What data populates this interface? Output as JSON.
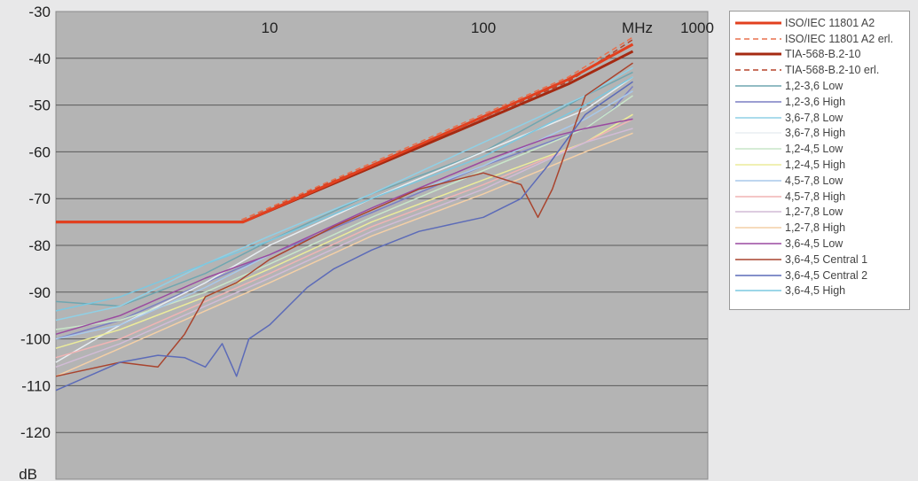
{
  "chart_data": {
    "type": "line",
    "x_scale": "log",
    "xlim": [
      1,
      1000
    ],
    "ylim": [
      -130,
      -30
    ],
    "x_ticks": [
      {
        "value": 10,
        "label": "10"
      },
      {
        "value": 100,
        "label": "100"
      },
      {
        "value": 1000,
        "label": "1000"
      }
    ],
    "x_unit_label": "MHz",
    "y_ticks": [
      -30,
      -40,
      -50,
      -60,
      -70,
      -80,
      -90,
      -100,
      -110,
      -120
    ],
    "y_unit_label": "dB",
    "grid": "horizontal",
    "legend_position": "right",
    "series": [
      {
        "name": "ISO/IEC 11801 A2",
        "color": "#e2401f",
        "width": 3,
        "dash": "",
        "x": [
          1,
          7.5,
          250,
          500
        ],
        "y": [
          -75,
          -75,
          -44.5,
          -37
        ]
      },
      {
        "name": "ISO/IEC 11801 A2 erl.",
        "color": "#e8704e",
        "width": 1.5,
        "dash": "6,4",
        "x": [
          1,
          7,
          250,
          500
        ],
        "y": [
          -75,
          -75,
          -44,
          -35.5
        ]
      },
      {
        "name": "TIA-568-B.2-10",
        "color": "#a52a12",
        "width": 3,
        "dash": "",
        "x": [
          1,
          7.5,
          250,
          500
        ],
        "y": [
          -75,
          -75,
          -45.5,
          -38.5
        ]
      },
      {
        "name": "TIA-568-B.2-10 erl.",
        "color": "#b5432a",
        "width": 1.5,
        "dash": "6,4",
        "x": [
          1,
          7,
          250,
          500
        ],
        "y": [
          -75,
          -75,
          -45,
          -36
        ]
      },
      {
        "name": "1,2-3,6 Low",
        "color": "#6fa6b0",
        "width": 1.5,
        "dash": "",
        "x": [
          1,
          2,
          5,
          10,
          30,
          100,
          300,
          500
        ],
        "y": [
          -92,
          -93,
          -86,
          -79,
          -69,
          -60,
          -48,
          -43
        ]
      },
      {
        "name": "1,2-3,6 High",
        "color": "#7b7fc4",
        "width": 1.5,
        "dash": "",
        "x": [
          1,
          2,
          5,
          10,
          30,
          100,
          200,
          300,
          400,
          500
        ],
        "y": [
          -100,
          -96,
          -88,
          -82,
          -73,
          -63,
          -58,
          -55,
          -51,
          -46
        ]
      },
      {
        "name": "3,6-7,8 Low",
        "color": "#8fd0e6",
        "width": 1.5,
        "dash": "",
        "x": [
          1,
          2,
          5,
          10,
          30,
          100,
          300,
          500
        ],
        "y": [
          -96,
          -93,
          -84,
          -78,
          -69,
          -58,
          -48,
          -42
        ]
      },
      {
        "name": "3,6-7,8 High",
        "color": "#e8eef2",
        "width": 1.5,
        "dash": "",
        "x": [
          1,
          2,
          5,
          10,
          30,
          100,
          300,
          500
        ],
        "y": [
          -105,
          -97,
          -88,
          -80,
          -70,
          -60,
          -51,
          -44
        ]
      },
      {
        "name": "1,2-4,5 Low",
        "color": "#c9e6c9",
        "width": 1.5,
        "dash": "",
        "x": [
          1,
          2,
          5,
          10,
          30,
          100,
          300,
          500
        ],
        "y": [
          -98,
          -96,
          -90,
          -84,
          -74,
          -64,
          -55,
          -48
        ]
      },
      {
        "name": "1,2-4,5 High",
        "color": "#ecec9a",
        "width": 1.5,
        "dash": "",
        "x": [
          1,
          2,
          5,
          10,
          30,
          100,
          300,
          500
        ],
        "y": [
          -102,
          -98,
          -91,
          -85,
          -75,
          -66,
          -58,
          -52
        ]
      },
      {
        "name": "4,5-7,8 Low",
        "color": "#a8c8ea",
        "width": 1.5,
        "dash": "",
        "x": [
          1,
          2,
          5,
          10,
          30,
          100,
          300,
          500
        ],
        "y": [
          -100,
          -97,
          -89,
          -82,
          -72,
          -63,
          -53,
          -47
        ]
      },
      {
        "name": "4,5-7,8 High",
        "color": "#f0b4b4",
        "width": 1.5,
        "dash": "",
        "x": [
          1,
          2,
          5,
          10,
          30,
          100,
          300,
          500
        ],
        "y": [
          -104,
          -100,
          -92,
          -86,
          -76,
          -67,
          -58,
          -53
        ]
      },
      {
        "name": "1,2-7,8 Low",
        "color": "#d2bcd6",
        "width": 1.5,
        "dash": "",
        "x": [
          1,
          2,
          5,
          10,
          30,
          100,
          300,
          500
        ],
        "y": [
          -106,
          -101,
          -93,
          -87,
          -77,
          -68,
          -58,
          -55
        ]
      },
      {
        "name": "1,2-7,8 High",
        "color": "#f4cfa6",
        "width": 1.5,
        "dash": "",
        "x": [
          1,
          2,
          5,
          10,
          30,
          100,
          300,
          500
        ],
        "y": [
          -108,
          -102,
          -94,
          -88,
          -78,
          -69,
          -60,
          -56
        ]
      },
      {
        "name": "3,6-4,5 Low",
        "color": "#9a4aa0",
        "width": 1.5,
        "dash": "",
        "x": [
          1,
          2,
          5,
          10,
          30,
          100,
          200,
          300,
          500
        ],
        "y": [
          -99,
          -95,
          -87,
          -82,
          -72,
          -62,
          -57,
          -55,
          -53
        ]
      },
      {
        "name": "3,6-4,5 Central 1",
        "color": "#a9442e",
        "width": 1.5,
        "dash": "",
        "x": [
          1,
          2,
          3,
          4,
          5,
          7,
          10,
          20,
          50,
          100,
          150,
          180,
          210,
          300,
          500
        ],
        "y": [
          -108,
          -105,
          -106,
          -99,
          -91,
          -88,
          -83,
          -76,
          -68,
          -64.5,
          -67,
          -74,
          -68,
          -48,
          -41
        ]
      },
      {
        "name": "3,6-4,5 Central 2",
        "color": "#5c6bb8",
        "width": 1.5,
        "dash": "",
        "x": [
          1,
          2,
          3,
          4,
          5,
          6,
          7,
          8,
          10,
          15,
          20,
          30,
          50,
          100,
          150,
          200,
          300,
          500
        ],
        "y": [
          -111,
          -105,
          -103.5,
          -104,
          -106,
          -101,
          -108,
          -100,
          -97,
          -89,
          -85,
          -81,
          -77,
          -74,
          -70,
          -63,
          -52,
          -45
        ]
      },
      {
        "name": "3,6-4,5 High",
        "color": "#7cc8e0",
        "width": 1.5,
        "dash": "",
        "x": [
          1,
          2,
          5,
          10,
          30,
          100,
          300,
          500
        ],
        "y": [
          -94,
          -91,
          -84,
          -79,
          -70,
          -61,
          -50,
          -44
        ]
      }
    ]
  }
}
